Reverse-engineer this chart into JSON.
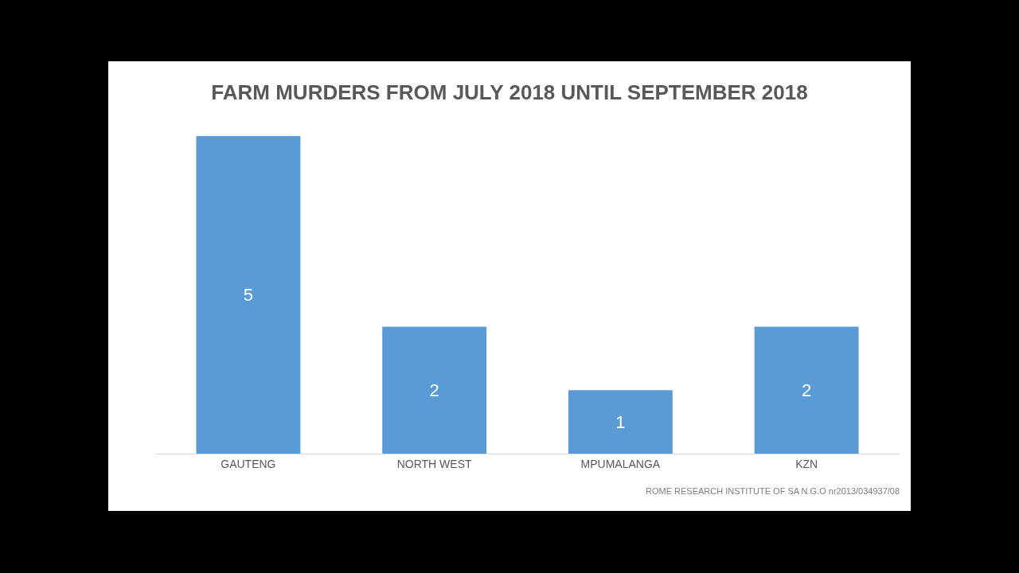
{
  "chart_data": {
    "type": "bar",
    "title": "FARM MURDERS FROM JULY 2018 UNTIL SEPTEMBER 2018",
    "categories": [
      "GAUTENG",
      "NORTH WEST",
      "MPUMALANGA",
      "KZN"
    ],
    "values": [
      5,
      2,
      1,
      2
    ],
    "color": "#5b9bd5",
    "data_labels": true,
    "legend": false,
    "tick_labels": "x",
    "annotations": [
      "ROME RESEARCH INSTITUTE OF SA N.G.O nr2013/034937/08"
    ]
  }
}
